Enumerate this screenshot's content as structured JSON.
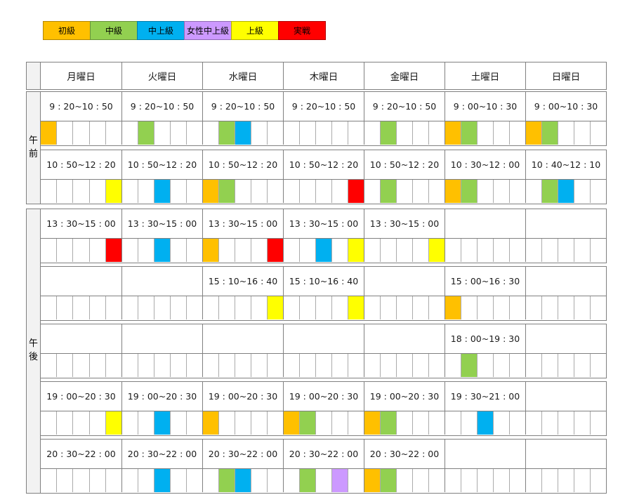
{
  "colors": {
    "beginner": "#FFC000",
    "intermediate": "#92D050",
    "upper_intermediate": "#00B0F0",
    "women_upper_intermediate": "#CC99FF",
    "advanced": "#FFFF00",
    "practice": "#FF0000",
    "border_dark": "#808080",
    "border_light": "#ABABAB",
    "label_bg": "#F2F2F2"
  },
  "legend": [
    {
      "level": "beginner",
      "label": "初級"
    },
    {
      "level": "intermediate",
      "label": "中級"
    },
    {
      "level": "upper_intermediate",
      "label": "中上級"
    },
    {
      "level": "women_upper_intermediate",
      "label": "女性中上級"
    },
    {
      "level": "advanced",
      "label": "上級"
    },
    {
      "level": "practice",
      "label": "実戦"
    }
  ],
  "days": [
    "月曜日",
    "火曜日",
    "水曜日",
    "木曜日",
    "金曜日",
    "土曜日",
    "日曜日"
  ],
  "sections": [
    {
      "id": "am",
      "label": "午前",
      "label_chars": [
        "午",
        "前"
      ],
      "blocks": [
        {
          "times": [
            "9 : 20~10 : 50",
            "9 : 20~10 : 50",
            "9 : 20~10 : 50",
            "9 : 20~10 : 50",
            "9 : 20~10 : 50",
            "9 : 00~10 : 30",
            "9 : 00~10 : 30"
          ],
          "cells": [
            [
              "beginner",
              null,
              null,
              null,
              null
            ],
            [
              null,
              "intermediate",
              null,
              null,
              null
            ],
            [
              null,
              "intermediate",
              "upper_intermediate",
              null,
              null
            ],
            [
              null,
              null,
              null,
              null,
              null
            ],
            [
              null,
              "intermediate",
              null,
              null,
              null
            ],
            [
              "beginner",
              "intermediate",
              null,
              null,
              null
            ],
            [
              "beginner",
              "intermediate",
              null,
              null,
              null
            ]
          ]
        },
        {
          "times": [
            "10 : 50~12 : 20",
            "10 : 50~12 : 20",
            "10 : 50~12 : 20",
            "10 : 50~12 : 20",
            "10 : 50~12 : 20",
            "10 : 30~12 : 00",
            "10 : 40~12 : 10"
          ],
          "cells": [
            [
              null,
              null,
              null,
              null,
              "advanced"
            ],
            [
              null,
              null,
              "upper_intermediate",
              null,
              null
            ],
            [
              "beginner",
              "intermediate",
              null,
              null,
              null
            ],
            [
              null,
              null,
              null,
              null,
              "practice"
            ],
            [
              null,
              "intermediate",
              null,
              null,
              null
            ],
            [
              "beginner",
              "intermediate",
              null,
              null,
              null
            ],
            [
              null,
              "intermediate",
              "upper_intermediate",
              null,
              null
            ]
          ]
        }
      ]
    },
    {
      "id": "pm",
      "label": "午後",
      "label_chars": [
        "午",
        "後"
      ],
      "blocks": [
        {
          "times": [
            "13 : 30~15 : 00",
            "13 : 30~15 : 00",
            "13 : 30~15 : 00",
            "13 : 30~15 : 00",
            "13 : 30~15 : 00",
            "",
            ""
          ],
          "cells": [
            [
              null,
              null,
              null,
              null,
              "practice"
            ],
            [
              null,
              null,
              "upper_intermediate",
              null,
              null
            ],
            [
              "beginner",
              null,
              null,
              null,
              "practice"
            ],
            [
              null,
              null,
              "upper_intermediate",
              null,
              "advanced"
            ],
            [
              null,
              null,
              null,
              null,
              "advanced"
            ],
            [
              null,
              null,
              null,
              null,
              null
            ],
            [
              null,
              null,
              null,
              null,
              null
            ]
          ]
        },
        {
          "times": [
            "",
            "",
            "15 : 10~16 : 40",
            "15 : 10~16 : 40",
            "",
            "15 : 00~16 : 30",
            ""
          ],
          "cells": [
            [
              null,
              null,
              null,
              null,
              null
            ],
            [
              null,
              null,
              null,
              null,
              null
            ],
            [
              null,
              null,
              null,
              null,
              "advanced"
            ],
            [
              null,
              null,
              null,
              null,
              "advanced"
            ],
            [
              null,
              null,
              null,
              null,
              null
            ],
            [
              "beginner",
              null,
              null,
              null,
              null
            ],
            [
              null,
              null,
              null,
              null,
              null
            ]
          ]
        },
        {
          "times": [
            "",
            "",
            "",
            "",
            "",
            "18 : 00~19 : 30",
            ""
          ],
          "cells": [
            [
              null,
              null,
              null,
              null,
              null
            ],
            [
              null,
              null,
              null,
              null,
              null
            ],
            [
              null,
              null,
              null,
              null,
              null
            ],
            [
              null,
              null,
              null,
              null,
              null
            ],
            [
              null,
              null,
              null,
              null,
              null
            ],
            [
              null,
              "intermediate",
              null,
              null,
              null
            ],
            [
              null,
              null,
              null,
              null,
              null
            ]
          ]
        },
        {
          "times": [
            "19 : 00~20 : 30",
            "19 : 00~20 : 30",
            "19 : 00~20 : 30",
            "19 : 00~20 : 30",
            "19 : 00~20 : 30",
            "19 : 30~21 : 00",
            ""
          ],
          "cells": [
            [
              null,
              null,
              null,
              null,
              "advanced"
            ],
            [
              null,
              null,
              "upper_intermediate",
              null,
              null
            ],
            [
              "beginner",
              null,
              null,
              null,
              null
            ],
            [
              "beginner",
              "intermediate",
              null,
              null,
              null
            ],
            [
              "beginner",
              "intermediate",
              null,
              null,
              null
            ],
            [
              null,
              null,
              "upper_intermediate",
              null,
              null
            ],
            [
              null,
              null,
              null,
              null,
              null
            ]
          ]
        },
        {
          "times": [
            "20 : 30~22 : 00",
            "20 : 30~22 : 00",
            "20 : 30~22 : 00",
            "20 : 30~22 : 00",
            "20 : 30~22 : 00",
            "",
            ""
          ],
          "cells": [
            [
              null,
              null,
              null,
              null,
              null
            ],
            [
              null,
              null,
              "upper_intermediate",
              null,
              null
            ],
            [
              null,
              "intermediate",
              "upper_intermediate",
              null,
              null
            ],
            [
              null,
              "intermediate",
              null,
              "women_upper_intermediate",
              null
            ],
            [
              "beginner",
              "intermediate",
              null,
              null,
              null
            ],
            [
              null,
              null,
              null,
              null,
              null
            ],
            [
              null,
              null,
              null,
              null,
              null
            ]
          ]
        }
      ]
    }
  ]
}
